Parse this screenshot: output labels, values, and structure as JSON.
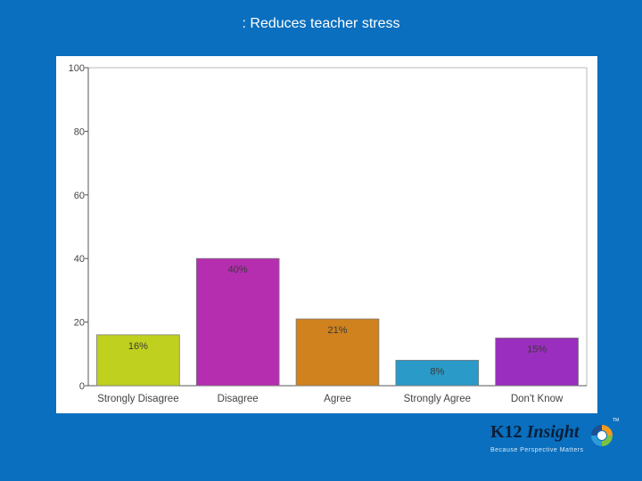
{
  "slide": {
    "title": ": Reduces teacher stress"
  },
  "chart_data": {
    "type": "bar",
    "title": ": Reduces teacher stress",
    "categories": [
      "Strongly Disagree",
      "Disagree",
      "Agree",
      "Strongly Agree",
      "Don't Know"
    ],
    "values": [
      16,
      40,
      21,
      8,
      15
    ],
    "data_labels": [
      "16%",
      "40%",
      "21%",
      "8%",
      "15%"
    ],
    "colors": [
      "#BFD01E",
      "#B52EB0",
      "#D0821E",
      "#2A9AC8",
      "#9A2EBE"
    ],
    "ylim": [
      0,
      100
    ],
    "yticks": [
      "0",
      "20",
      "40",
      "60",
      "80",
      "100"
    ],
    "xlabel": "",
    "ylabel": "",
    "grid": false
  },
  "logo": {
    "brand_prefix": "K12",
    "brand_name": "Insight",
    "trademark": "TM",
    "tagline": "Because Perspective Matters"
  }
}
